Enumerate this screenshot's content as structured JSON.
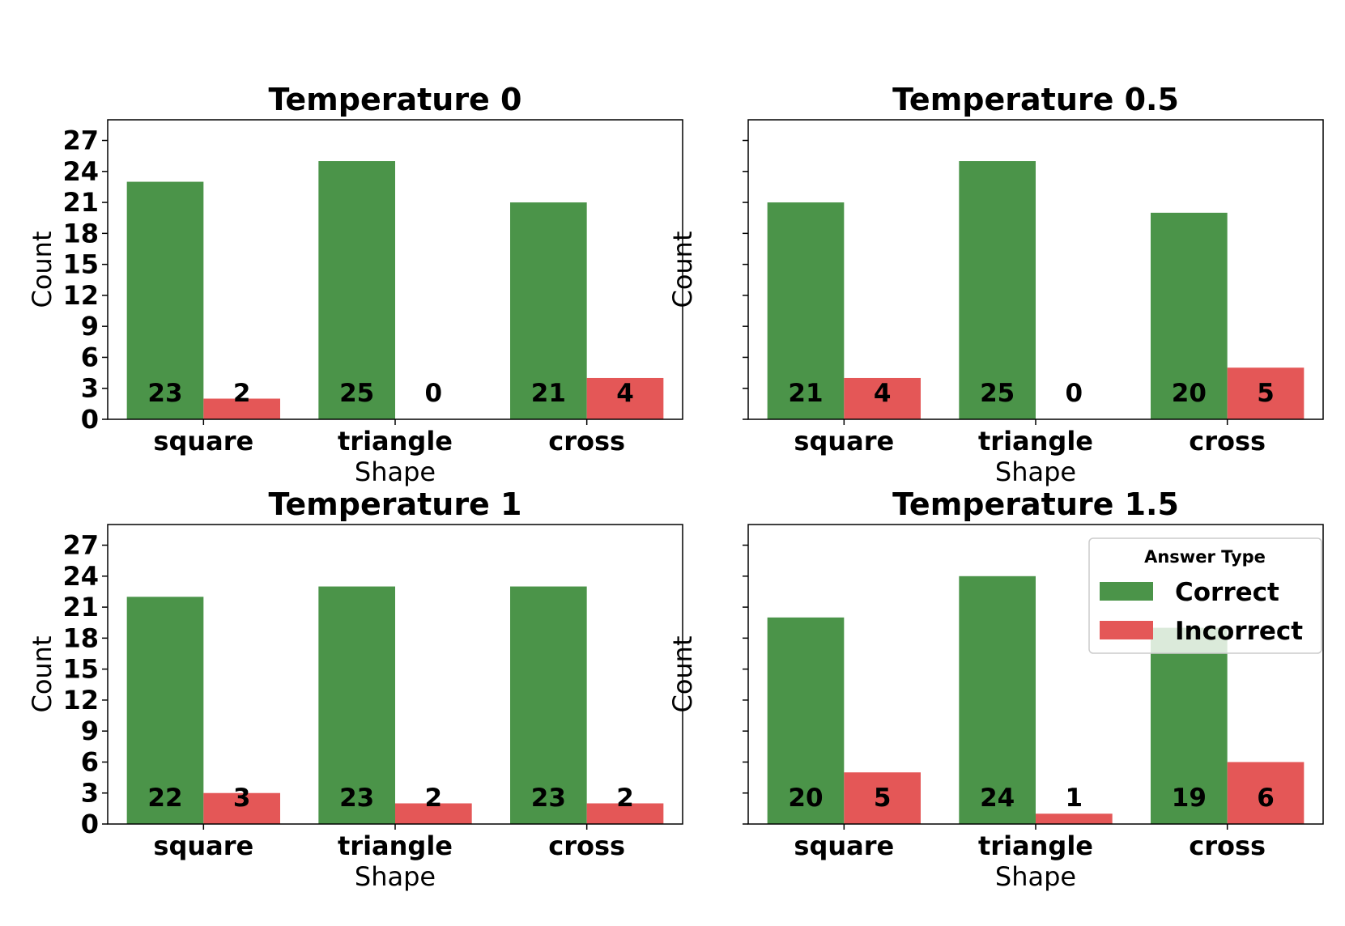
{
  "colors": {
    "correct": "#4b9449",
    "incorrect": "#e45757"
  },
  "legend": {
    "title": "Answer Type",
    "entries": [
      "Correct",
      "Incorrect"
    ],
    "placement": "top-right of last panel"
  },
  "chart_data": [
    {
      "type": "bar",
      "title": "Temperature 0",
      "xlabel": "Shape",
      "ylabel": "Count",
      "categories": [
        "square",
        "triangle",
        "cross"
      ],
      "series": [
        {
          "name": "Correct",
          "values": [
            23,
            25,
            21
          ]
        },
        {
          "name": "Incorrect",
          "values": [
            2,
            0,
            4
          ]
        }
      ],
      "ylim": [
        0,
        29
      ],
      "yticks": [
        "0",
        "3",
        "6",
        "9",
        "12",
        "15",
        "18",
        "21",
        "24",
        "27"
      ],
      "show_ytick_labels": true,
      "legend": false
    },
    {
      "type": "bar",
      "title": "Temperature 0.5",
      "xlabel": "Shape",
      "ylabel": "Count",
      "categories": [
        "square",
        "triangle",
        "cross"
      ],
      "series": [
        {
          "name": "Correct",
          "values": [
            21,
            25,
            20
          ]
        },
        {
          "name": "Incorrect",
          "values": [
            4,
            0,
            5
          ]
        }
      ],
      "ylim": [
        0,
        29
      ],
      "yticks": [
        "0",
        "3",
        "6",
        "9",
        "12",
        "15",
        "18",
        "21",
        "24",
        "27"
      ],
      "show_ytick_labels": false,
      "legend": false
    },
    {
      "type": "bar",
      "title": "Temperature 1",
      "xlabel": "Shape",
      "ylabel": "Count",
      "categories": [
        "square",
        "triangle",
        "cross"
      ],
      "series": [
        {
          "name": "Correct",
          "values": [
            22,
            23,
            23
          ]
        },
        {
          "name": "Incorrect",
          "values": [
            3,
            2,
            2
          ]
        }
      ],
      "ylim": [
        0,
        29
      ],
      "yticks": [
        "0",
        "3",
        "6",
        "9",
        "12",
        "15",
        "18",
        "21",
        "24",
        "27"
      ],
      "show_ytick_labels": true,
      "legend": false
    },
    {
      "type": "bar",
      "title": "Temperature 1.5",
      "xlabel": "Shape",
      "ylabel": "Count",
      "categories": [
        "square",
        "triangle",
        "cross"
      ],
      "series": [
        {
          "name": "Correct",
          "values": [
            20,
            24,
            19
          ]
        },
        {
          "name": "Incorrect",
          "values": [
            5,
            1,
            6
          ]
        }
      ],
      "ylim": [
        0,
        29
      ],
      "yticks": [
        "0",
        "3",
        "6",
        "9",
        "12",
        "15",
        "18",
        "21",
        "24",
        "27"
      ],
      "show_ytick_labels": false,
      "legend": true
    }
  ]
}
